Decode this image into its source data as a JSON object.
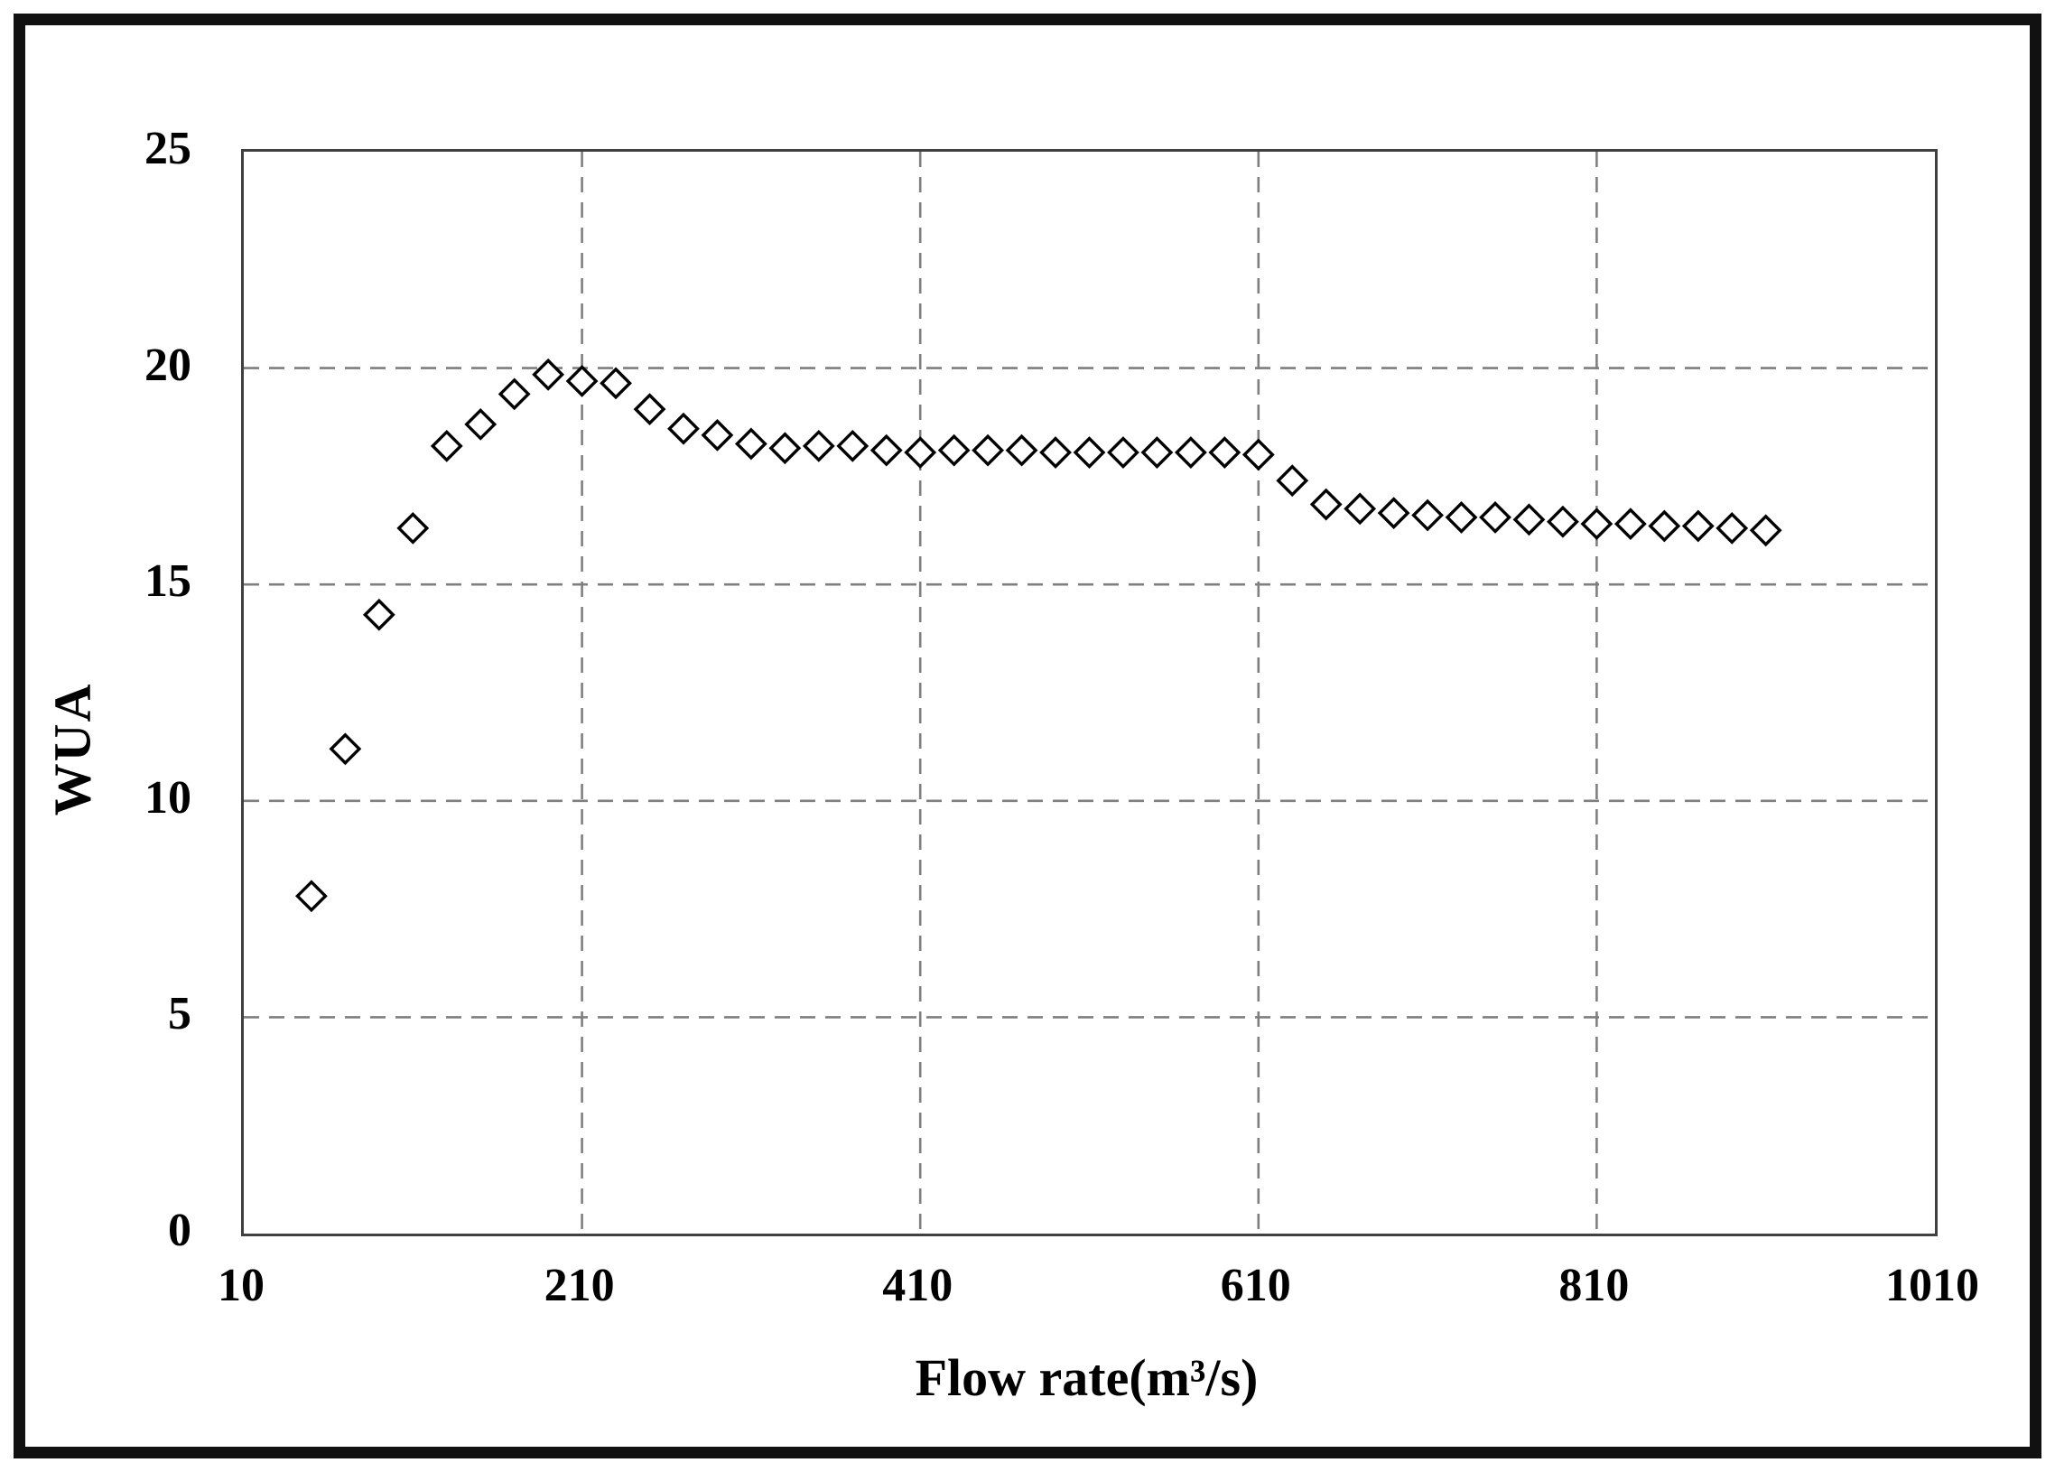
{
  "figure": {
    "background": "#ffffff",
    "frame_color": "#111111",
    "plot_border_color": "#404040"
  },
  "chart_data": {
    "type": "scatter",
    "title": "",
    "xlabel": "Flow rate(m³/s)",
    "ylabel": "WUA",
    "xlim": [
      10,
      1010
    ],
    "ylim": [
      0,
      25
    ],
    "x_ticks": [
      "10",
      "210",
      "410",
      "610",
      "810",
      "1010"
    ],
    "x_tick_values": [
      10,
      210,
      410,
      610,
      810,
      1010
    ],
    "y_ticks": [
      "0",
      "5",
      "10",
      "15",
      "20",
      "25"
    ],
    "y_tick_values": [
      0,
      5,
      10,
      15,
      20,
      25
    ],
    "grid": "dashed",
    "grid_color": "#7f7f7f",
    "legend": "none",
    "marker": "open-diamond",
    "marker_color": "#000000",
    "series": [
      {
        "name": "WUA",
        "points": [
          [
            50,
            7.8
          ],
          [
            70,
            11.2
          ],
          [
            90,
            14.3
          ],
          [
            110,
            16.3
          ],
          [
            130,
            18.2
          ],
          [
            150,
            18.7
          ],
          [
            170,
            19.4
          ],
          [
            190,
            19.85
          ],
          [
            210,
            19.7
          ],
          [
            230,
            19.65
          ],
          [
            250,
            19.05
          ],
          [
            270,
            18.6
          ],
          [
            290,
            18.45
          ],
          [
            310,
            18.25
          ],
          [
            330,
            18.15
          ],
          [
            350,
            18.2
          ],
          [
            370,
            18.2
          ],
          [
            390,
            18.1
          ],
          [
            410,
            18.05
          ],
          [
            430,
            18.1
          ],
          [
            450,
            18.1
          ],
          [
            470,
            18.1
          ],
          [
            490,
            18.05
          ],
          [
            510,
            18.05
          ],
          [
            530,
            18.05
          ],
          [
            550,
            18.05
          ],
          [
            570,
            18.05
          ],
          [
            590,
            18.05
          ],
          [
            610,
            18.0
          ],
          [
            630,
            17.4
          ],
          [
            650,
            16.85
          ],
          [
            670,
            16.75
          ],
          [
            690,
            16.65
          ],
          [
            710,
            16.6
          ],
          [
            730,
            16.55
          ],
          [
            750,
            16.55
          ],
          [
            770,
            16.5
          ],
          [
            790,
            16.45
          ],
          [
            810,
            16.4
          ],
          [
            830,
            16.4
          ],
          [
            850,
            16.35
          ],
          [
            870,
            16.35
          ],
          [
            890,
            16.3
          ],
          [
            910,
            16.25
          ]
        ]
      }
    ]
  }
}
